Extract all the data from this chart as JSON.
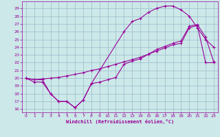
{
  "bg_color": "#cce8e8",
  "line_color": "#990099",
  "grid_color": "#99bbcc",
  "xlabel": "Windchill (Refroidissement éolien,°C)",
  "xlim": [
    -0.5,
    23.5
  ],
  "ylim": [
    15.6,
    29.9
  ],
  "yticks": [
    16,
    17,
    18,
    19,
    20,
    21,
    22,
    23,
    24,
    25,
    26,
    27,
    28,
    29
  ],
  "xticks": [
    0,
    1,
    2,
    3,
    4,
    5,
    6,
    7,
    8,
    9,
    10,
    11,
    12,
    13,
    14,
    15,
    16,
    17,
    18,
    19,
    20,
    21,
    22,
    23
  ],
  "curve1_x": [
    0,
    1,
    2,
    3,
    4,
    5,
    6,
    7,
    8,
    12,
    13,
    14,
    15,
    16,
    17,
    18,
    19,
    20,
    21,
    22,
    23
  ],
  "curve1_y": [
    20.0,
    19.5,
    19.5,
    18.0,
    17.0,
    17.0,
    16.2,
    17.2,
    19.3,
    26.0,
    27.3,
    27.7,
    28.5,
    29.0,
    29.3,
    29.3,
    28.8,
    28.0,
    26.5,
    25.0,
    24.0
  ],
  "curve2_x": [
    0,
    1,
    2,
    3,
    4,
    5,
    6,
    7,
    8,
    9,
    10,
    11,
    12,
    13,
    14,
    15,
    16,
    17,
    18,
    19,
    20,
    21,
    22,
    23
  ],
  "curve2_y": [
    20.0,
    19.8,
    19.9,
    20.0,
    20.1,
    20.3,
    20.5,
    20.7,
    21.0,
    21.2,
    21.5,
    21.8,
    22.1,
    22.4,
    22.7,
    23.1,
    23.5,
    23.9,
    24.3,
    24.5,
    26.5,
    26.8,
    22.0,
    22.0
  ],
  "curve3_x": [
    0,
    1,
    2,
    3,
    4,
    5,
    6,
    7,
    8,
    9,
    10,
    11,
    12,
    13,
    14,
    15,
    16,
    17,
    18,
    19,
    20,
    21,
    22,
    23
  ],
  "curve3_y": [
    20.0,
    19.8,
    19.8,
    18.0,
    17.0,
    17.0,
    16.2,
    17.2,
    19.3,
    19.5,
    19.8,
    20.1,
    21.8,
    22.2,
    22.5,
    23.1,
    23.7,
    24.1,
    24.5,
    24.8,
    26.7,
    26.9,
    25.3,
    22.1
  ]
}
